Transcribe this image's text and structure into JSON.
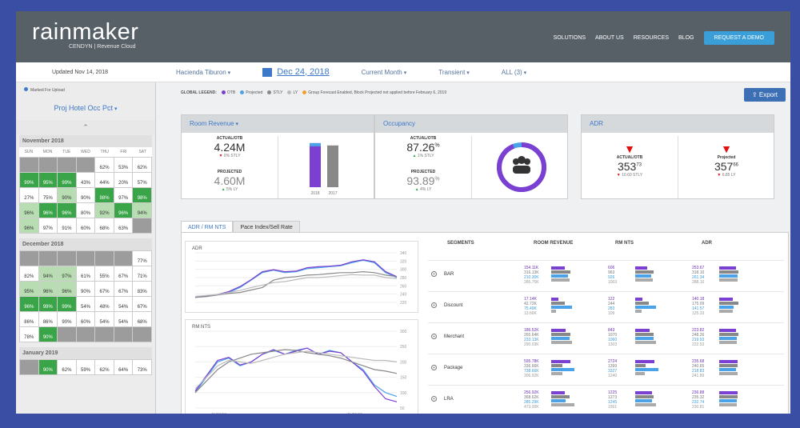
{
  "header": {
    "logo": "rainmaker",
    "logo_sub": "CENDYN | Revenue Cloud",
    "nav": [
      "SOLUTIONS",
      "ABOUT US",
      "RESOURCES",
      "BLOG"
    ],
    "cta": "REQUEST A DEMO"
  },
  "subbar": {
    "updated": "Updated Nov 14, 2018",
    "property": "Hacienda Tiburon",
    "date": "Dec 24, 2018",
    "period": "Current Month",
    "segment_type": "Transient",
    "filter": "ALL (3)"
  },
  "left": {
    "legend": "Marked For Upload",
    "metric": "Proj Hotel Occ Pct",
    "dow": [
      "SUN",
      "MON",
      "TUE",
      "WED",
      "THU",
      "FRI",
      "SAT"
    ],
    "months": [
      {
        "name": "November 2018",
        "cells": [
          {
            "v": "",
            "c": "c-gr"
          },
          {
            "v": "",
            "c": "c-gr"
          },
          {
            "v": "",
            "c": "c-gr"
          },
          {
            "v": "",
            "c": "c-gr"
          },
          {
            "v": "62%",
            "c": "c-w"
          },
          {
            "v": "53%",
            "c": "c-w"
          },
          {
            "v": "62%",
            "c": "c-w"
          },
          {
            "v": "99%",
            "c": "c-g"
          },
          {
            "v": "95%",
            "c": "c-g"
          },
          {
            "v": "99%",
            "c": "c-g"
          },
          {
            "v": "43%",
            "c": "c-w"
          },
          {
            "v": "44%",
            "c": "c-w"
          },
          {
            "v": "20%",
            "c": "c-w"
          },
          {
            "v": "57%",
            "c": "c-w"
          },
          {
            "v": "27%",
            "c": "c-w"
          },
          {
            "v": "75%",
            "c": "c-w"
          },
          {
            "v": "90%",
            "c": "c-lg"
          },
          {
            "v": "90%",
            "c": "c-w"
          },
          {
            "v": "98%",
            "c": "c-g"
          },
          {
            "v": "97%",
            "c": "c-w"
          },
          {
            "v": "98%",
            "c": "c-g"
          },
          {
            "v": "96%",
            "c": "c-lg"
          },
          {
            "v": "96%",
            "c": "c-g"
          },
          {
            "v": "96%",
            "c": "c-g"
          },
          {
            "v": "80%",
            "c": "c-w"
          },
          {
            "v": "92%",
            "c": "c-lg"
          },
          {
            "v": "96%",
            "c": "c-g"
          },
          {
            "v": "94%",
            "c": "c-lg"
          },
          {
            "v": "96%",
            "c": "c-lg"
          },
          {
            "v": "97%",
            "c": "c-w"
          },
          {
            "v": "91%",
            "c": "c-w"
          },
          {
            "v": "60%",
            "c": "c-w"
          },
          {
            "v": "68%",
            "c": "c-w"
          },
          {
            "v": "63%",
            "c": "c-w"
          },
          {
            "v": "",
            "c": "c-gr"
          }
        ]
      },
      {
        "name": "December 2018",
        "cells": [
          {
            "v": "",
            "c": "c-gr"
          },
          {
            "v": "",
            "c": "c-gr"
          },
          {
            "v": "",
            "c": "c-gr"
          },
          {
            "v": "",
            "c": "c-gr"
          },
          {
            "v": "",
            "c": "c-gr"
          },
          {
            "v": "",
            "c": "c-gr"
          },
          {
            "v": "77%",
            "c": "c-w"
          },
          {
            "v": "82%",
            "c": "c-w"
          },
          {
            "v": "94%",
            "c": "c-lg"
          },
          {
            "v": "97%",
            "c": "c-lg"
          },
          {
            "v": "61%",
            "c": "c-w"
          },
          {
            "v": "55%",
            "c": "c-w"
          },
          {
            "v": "67%",
            "c": "c-w"
          },
          {
            "v": "71%",
            "c": "c-w"
          },
          {
            "v": "95%",
            "c": "c-lg"
          },
          {
            "v": "96%",
            "c": "c-lg"
          },
          {
            "v": "96%",
            "c": "c-lg"
          },
          {
            "v": "90%",
            "c": "c-w"
          },
          {
            "v": "67%",
            "c": "c-w"
          },
          {
            "v": "67%",
            "c": "c-w"
          },
          {
            "v": "83%",
            "c": "c-w"
          },
          {
            "v": "96%",
            "c": "c-g"
          },
          {
            "v": "99%",
            "c": "c-g"
          },
          {
            "v": "99%",
            "c": "c-g"
          },
          {
            "v": "54%",
            "c": "c-w"
          },
          {
            "v": "48%",
            "c": "c-w"
          },
          {
            "v": "54%",
            "c": "c-w"
          },
          {
            "v": "67%",
            "c": "c-w"
          },
          {
            "v": "86%",
            "c": "c-w"
          },
          {
            "v": "86%",
            "c": "c-w"
          },
          {
            "v": "90%",
            "c": "c-w"
          },
          {
            "v": "60%",
            "c": "c-w"
          },
          {
            "v": "54%",
            "c": "c-w"
          },
          {
            "v": "54%",
            "c": "c-w"
          },
          {
            "v": "68%",
            "c": "c-w"
          },
          {
            "v": "78%",
            "c": "c-w"
          },
          {
            "v": "90%",
            "c": "c-g"
          },
          {
            "v": "",
            "c": "c-gr"
          },
          {
            "v": "",
            "c": "c-gr"
          },
          {
            "v": "",
            "c": "c-gr"
          },
          {
            "v": "",
            "c": "c-gr"
          },
          {
            "v": "",
            "c": "c-gr"
          }
        ]
      },
      {
        "name": "January 2019",
        "cells": [
          {
            "v": "",
            "c": "c-gr"
          },
          {
            "v": "90%",
            "c": "c-g"
          },
          {
            "v": "62%",
            "c": "c-w"
          },
          {
            "v": "59%",
            "c": "c-w"
          },
          {
            "v": "62%",
            "c": "c-w"
          },
          {
            "v": "64%",
            "c": "c-w"
          },
          {
            "v": "73%",
            "c": "c-w"
          }
        ]
      }
    ]
  },
  "main": {
    "global_legend": "GLOBAL LEGEND:",
    "legend_items": [
      {
        "label": "OTB",
        "color": "#7b3fd1"
      },
      {
        "label": "Projected",
        "color": "#4aa3e8"
      },
      {
        "label": "STLY",
        "color": "#888888"
      },
      {
        "label": "LY",
        "color": "#bbbbbb"
      },
      {
        "label": "Group Forecast Enabled, Block Projected not applied before February 6, 2019",
        "color": "#f0a030"
      }
    ],
    "export": "Export",
    "room_revenue": {
      "title": "Room Revenue",
      "actual_lbl": "ACTUAL/OTB",
      "actual": "4.24M",
      "actual_sub": "0% STLY",
      "proj_lbl": "PROJECTED",
      "proj": "4.60M",
      "proj_sub": "5% LY",
      "bar_labels": [
        "2018",
        "2017"
      ],
      "bar_values": [
        0.95,
        0.9
      ]
    },
    "occupancy": {
      "title": "Occupancy",
      "actual_lbl": "ACTUAL/OTB",
      "actual": "87.26",
      "actual_sub": "1% STLY",
      "proj_lbl": "PROJECTED",
      "proj": "93.89",
      "proj_sub": "4% LY",
      "pct_sign": "%",
      "ring_fill": 0.94
    },
    "adr": {
      "title": "ADR",
      "a_lbl": "ACTUAL/OTB",
      "a_val": "353",
      "a_sub": "10.60 STLY",
      "p_lbl": "Projected",
      "p_val": "357",
      "p_sub": "6.85 LY",
      "a_cents": "73",
      "p_cents": "66"
    },
    "tabs": [
      "ADR / RM NTS",
      "Pace Index/Sell Rate"
    ],
    "chart1": {
      "label": "ADR",
      "y_ticks": [
        "340",
        "320",
        "300",
        "280",
        "260",
        "240",
        "220"
      ]
    },
    "chart2": {
      "label": "RM NTS",
      "y_ticks": [
        "300",
        "250",
        "200",
        "150",
        "100",
        "50"
      ],
      "x_ticks": [
        "11/08/18",
        "11/29/18"
      ]
    },
    "seg_headers": [
      "SEGMENTS",
      "ROOM REVENUE",
      "RM NTS",
      "ADR"
    ],
    "segments": [
      {
        "name": "BAR",
        "rev": [
          "154.11K",
          "316.13K",
          "210.30K",
          "285.75K"
        ],
        "nts": [
          "606",
          "963",
          "926",
          "1003"
        ],
        "adr": [
          "253.67",
          "318.10",
          "261.34",
          "288.10"
        ],
        "b1": [
          0.55,
          0.8,
          0.7,
          0.75
        ],
        "b2": [
          0.5,
          0.75,
          0.65,
          0.72
        ],
        "b3": [
          0.7,
          0.8,
          0.75,
          0.78
        ]
      },
      {
        "name": "Discount",
        "rev": [
          "17.14K",
          "42.72K",
          "75.49K",
          "13.66K"
        ],
        "nts": [
          "122",
          "244",
          "283",
          "109"
        ],
        "adr": [
          "140.18",
          "175.09",
          "141.57",
          "125.33"
        ],
        "b1": [
          0.3,
          0.55,
          0.85,
          0.2
        ],
        "b2": [
          0.3,
          0.55,
          0.85,
          0.25
        ],
        "b3": [
          0.55,
          0.8,
          0.6,
          0.55
        ]
      },
      {
        "name": "Merchant",
        "rev": [
          "186.52K",
          "265.64K",
          "233.13K",
          "290.03K"
        ],
        "nts": [
          "843",
          "1070",
          "1060",
          "1303"
        ],
        "adr": [
          "223.82",
          "248.26",
          "219.93",
          "222.53"
        ],
        "b1": [
          0.6,
          0.8,
          0.75,
          0.85
        ],
        "b2": [
          0.6,
          0.78,
          0.75,
          0.85
        ],
        "b3": [
          0.7,
          0.8,
          0.72,
          0.72
        ]
      },
      {
        "name": "Package",
        "rev": [
          "595.78K",
          "336.66K",
          "738.66K",
          "306.92K"
        ],
        "nts": [
          "2724",
          "1399",
          "3327",
          "1240"
        ],
        "adr": [
          "235.68",
          "240.65",
          "218.83",
          "241.89"
        ],
        "b1": [
          0.8,
          0.45,
          0.95,
          0.45
        ],
        "b2": [
          0.8,
          0.42,
          0.95,
          0.4
        ],
        "b3": [
          0.75,
          0.78,
          0.7,
          0.78
        ]
      },
      {
        "name": "LRA",
        "rev": [
          "256.92K",
          "368.62K",
          "285.29K",
          "473.00K"
        ],
        "nts": [
          "1225",
          "1273",
          "1245",
          "1561"
        ],
        "adr": [
          "236.88",
          "235.32",
          "232.74",
          "230.81"
        ],
        "b1": [
          0.55,
          0.75,
          0.6,
          0.95
        ],
        "b2": [
          0.7,
          0.75,
          0.7,
          0.85
        ],
        "b3": [
          0.75,
          0.75,
          0.74,
          0.73
        ]
      }
    ]
  }
}
